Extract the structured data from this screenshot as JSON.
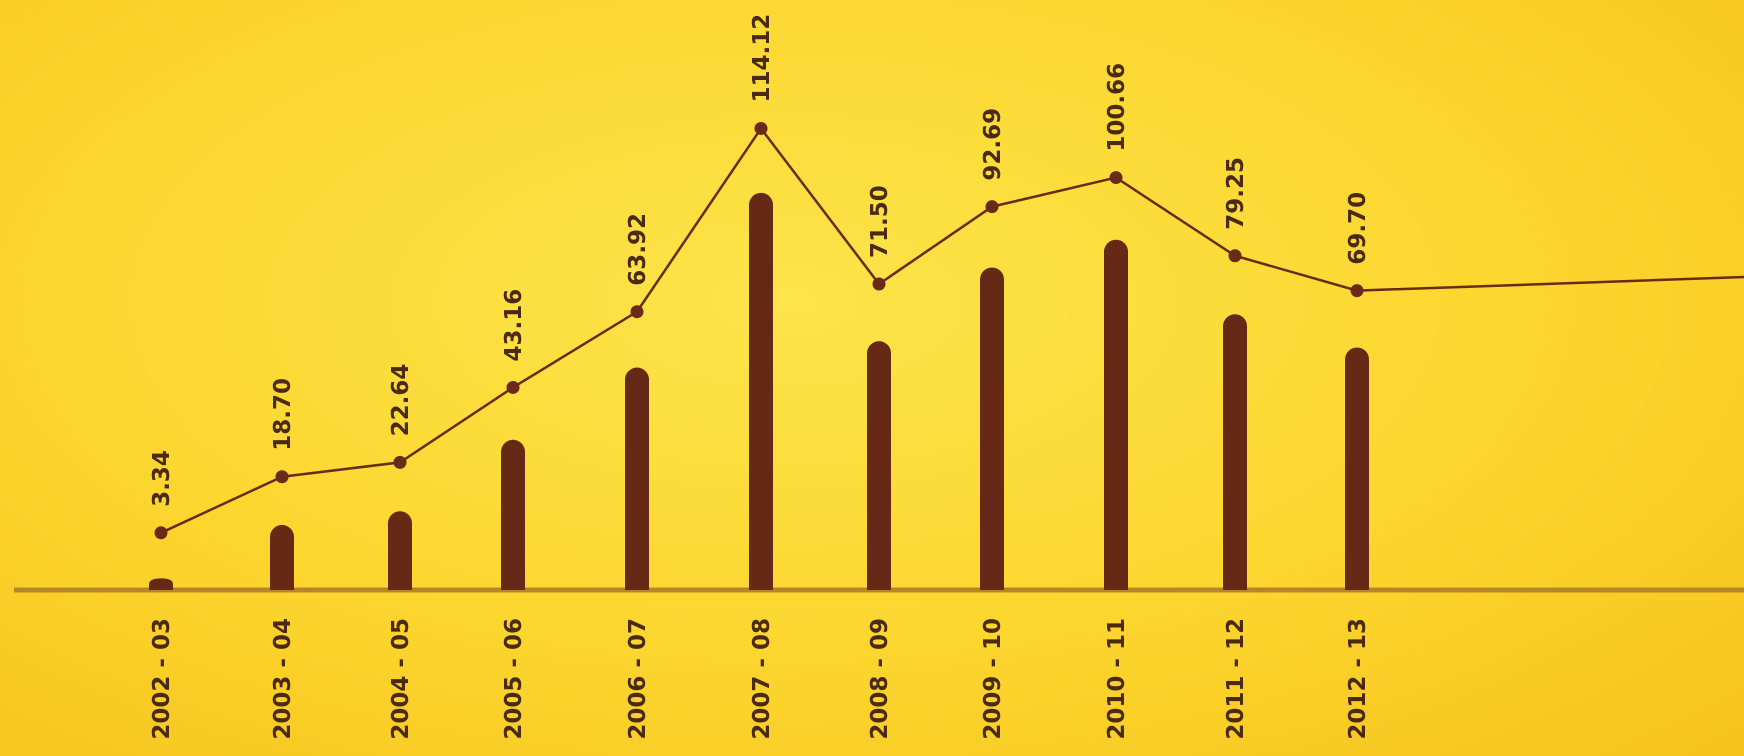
{
  "chart_data": {
    "type": "bar",
    "categories": [
      "2002 - 03",
      "2003 - 04",
      "2004 - 05",
      "2005 - 06",
      "2006 - 07",
      "2007 - 08",
      "2008 - 09",
      "2009 - 10",
      "2010 - 11",
      "2011 - 12",
      "2012 - 13"
    ],
    "series": [
      {
        "values": [
          3.34,
          18.7,
          22.64,
          43.16,
          63.92,
          114.12,
          71.5,
          92.69,
          100.66,
          79.25,
          69.7
        ]
      }
    ],
    "value_labels": [
      "3.34",
      "18.70",
      "22.64",
      "43.16",
      "63.92",
      "114.12",
      "71.50",
      "92.69",
      "100.66",
      "79.25",
      "69.70"
    ],
    "line_overlay": true,
    "title": "",
    "xlabel": "",
    "ylabel": "",
    "grid": false,
    "colors": {
      "bar": "#652916",
      "line": "#6b2a17",
      "axis": "#b8862a",
      "text": "#4a2a14"
    }
  }
}
